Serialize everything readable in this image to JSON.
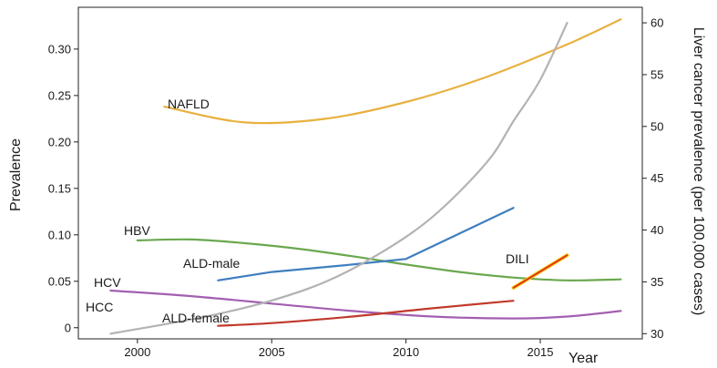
{
  "chart_data": {
    "type": "line",
    "title": "",
    "xlabel": "Year",
    "ylabel_left": "Prevalence",
    "ylabel_right": "Liver cancer prevalence (per 100,000 cases)",
    "xlim": [
      1997.8,
      2018.8
    ],
    "ylim_left": [
      -0.012,
      0.345
    ],
    "ylim_right": [
      29.5,
      61.5
    ],
    "x_ticks": [
      2000,
      2005,
      2010,
      2015
    ],
    "y_ticks_left": [
      0,
      0.05,
      0.1,
      0.15,
      0.2,
      0.25,
      0.3
    ],
    "y_tick_labels_left": [
      "0",
      "0.05",
      "0.10",
      "0.15",
      "0.20",
      "0.25",
      "0.30"
    ],
    "y_ticks_right": [
      30,
      35,
      40,
      45,
      50,
      55,
      60
    ],
    "grid": false,
    "legend": "none",
    "series": [
      {
        "name": "NAFLD",
        "axis": "left",
        "color": "#e8b13f",
        "x": [
          2001,
          2004,
          2007,
          2010,
          2013,
          2016,
          2018
        ],
        "y": [
          0.238,
          0.221,
          0.225,
          0.243,
          0.27,
          0.305,
          0.332
        ]
      },
      {
        "name": "HBV",
        "axis": "left",
        "color": "#6aa84f",
        "x": [
          2000,
          2002,
          2004,
          2006,
          2008,
          2010,
          2012,
          2014,
          2016,
          2018
        ],
        "y": [
          0.094,
          0.095,
          0.091,
          0.085,
          0.077,
          0.068,
          0.06,
          0.054,
          0.051,
          0.052
        ]
      },
      {
        "name": "ALD-male",
        "axis": "left",
        "color": "#3f7fbf",
        "x": [
          2003,
          2005,
          2008,
          2010,
          2014
        ],
        "y": [
          0.051,
          0.06,
          0.068,
          0.074,
          0.129
        ]
      },
      {
        "name": "HCV",
        "axis": "left",
        "color": "#a25fb0",
        "x": [
          1999,
          2002,
          2005,
          2008,
          2011,
          2014,
          2016,
          2018
        ],
        "y": [
          0.04,
          0.034,
          0.026,
          0.018,
          0.012,
          0.01,
          0.012,
          0.018
        ]
      },
      {
        "name": "ALD-female",
        "axis": "left",
        "color": "#c0392b",
        "x": [
          2003,
          2005,
          2008,
          2011,
          2014
        ],
        "y": [
          0.002,
          0.005,
          0.012,
          0.021,
          0.029
        ]
      },
      {
        "name": "DILI",
        "axis": "left",
        "color": "#f1c40f",
        "overlay_color": "#e0211d",
        "x": [
          2014,
          2016
        ],
        "y": [
          0.043,
          0.078
        ]
      },
      {
        "name": "HCC",
        "axis": "right",
        "color": "#b3b3b3",
        "x": [
          1999,
          2001,
          2003,
          2005,
          2007,
          2009,
          2011,
          2013,
          2014,
          2015,
          2016
        ],
        "y": [
          30.0,
          30.9,
          31.9,
          33.2,
          35.0,
          37.7,
          41.3,
          46.5,
          50.5,
          54.5,
          60.0
        ]
      }
    ]
  }
}
